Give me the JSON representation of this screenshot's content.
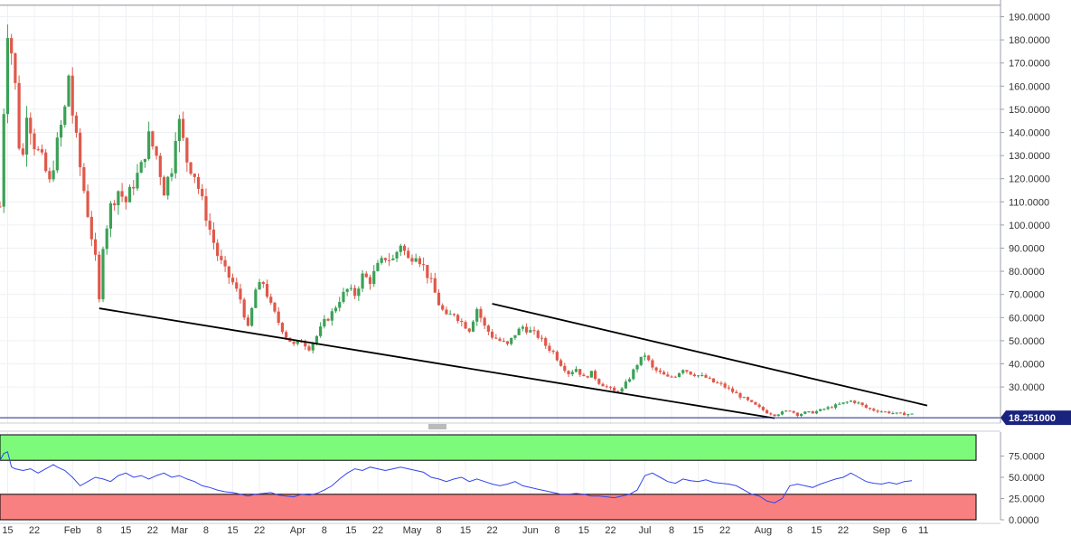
{
  "chart_data": [
    {
      "type": "candlestick",
      "title": "",
      "xlabel": "",
      "ylabel": "",
      "ylim": [
        14,
        197
      ],
      "y_ticks": [
        "190.0000",
        "180.0000",
        "170.0000",
        "160.0000",
        "150.0000",
        "140.0000",
        "130.0000",
        "120.0000",
        "110.0000",
        "100.0000",
        "90.0000",
        "80.0000",
        "70.0000",
        "60.0000",
        "50.0000",
        "40.0000",
        "30.0000"
      ],
      "y_tick_values": [
        190,
        180,
        170,
        160,
        150,
        140,
        130,
        120,
        110,
        100,
        90,
        80,
        70,
        60,
        50,
        40,
        30
      ],
      "x_tick_labels": [
        "15",
        "22",
        "Feb",
        "8",
        "15",
        "22",
        "Mar",
        "8",
        "15",
        "22",
        "Apr",
        "8",
        "15",
        "22",
        "May",
        "8",
        "15",
        "22",
        "Jun",
        "8",
        "15",
        "22",
        "Jul",
        "8",
        "15",
        "22",
        "Aug",
        "8",
        "15",
        "22",
        "Sep",
        "6",
        "11"
      ],
      "x_tick_days": [
        15,
        22,
        32,
        39,
        46,
        53,
        60,
        67,
        74,
        81,
        91,
        98,
        105,
        112,
        121,
        128,
        135,
        142,
        152,
        159,
        166,
        173,
        182,
        189,
        196,
        203,
        213,
        220,
        227,
        234,
        244,
        250,
        255
      ],
      "x_range_days": [
        13,
        270
      ],
      "grid": true,
      "current_price": {
        "label": "18.251000",
        "value": 18.251,
        "color": "#1a237e"
      },
      "colors": {
        "up": "#3aa155",
        "down": "#e0584a"
      },
      "close_anchors": [
        [
          13,
          108
        ],
        [
          14,
          150
        ],
        [
          15,
          185
        ],
        [
          16,
          175
        ],
        [
          17,
          160
        ],
        [
          18,
          135
        ],
        [
          19,
          130
        ],
        [
          20,
          150
        ],
        [
          22,
          135
        ],
        [
          24,
          128
        ],
        [
          26,
          118
        ],
        [
          28,
          135
        ],
        [
          30,
          150
        ],
        [
          31,
          165
        ],
        [
          32,
          148
        ],
        [
          34,
          125
        ],
        [
          36,
          105
        ],
        [
          38,
          85
        ],
        [
          39,
          67
        ],
        [
          40,
          92
        ],
        [
          42,
          108
        ],
        [
          44,
          115
        ],
        [
          46,
          110
        ],
        [
          48,
          118
        ],
        [
          50,
          125
        ],
        [
          52,
          138
        ],
        [
          54,
          130
        ],
        [
          56,
          115
        ],
        [
          58,
          125
        ],
        [
          59,
          140
        ],
        [
          60,
          144
        ],
        [
          62,
          128
        ],
        [
          64,
          122
        ],
        [
          66,
          110
        ],
        [
          68,
          98
        ],
        [
          70,
          87
        ],
        [
          72,
          80
        ],
        [
          74,
          75
        ],
        [
          76,
          68
        ],
        [
          78,
          55
        ],
        [
          80,
          72
        ],
        [
          82,
          75
        ],
        [
          84,
          65
        ],
        [
          86,
          58
        ],
        [
          88,
          52
        ],
        [
          90,
          48
        ],
        [
          92,
          50
        ],
        [
          94,
          47
        ],
        [
          96,
          52
        ],
        [
          98,
          58
        ],
        [
          100,
          62
        ],
        [
          102,
          68
        ],
        [
          104,
          72
        ],
        [
          106,
          70
        ],
        [
          108,
          78
        ],
        [
          110,
          76
        ],
        [
          112,
          82
        ],
        [
          114,
          86
        ],
        [
          116,
          85
        ],
        [
          118,
          92
        ],
        [
          120,
          85
        ],
        [
          122,
          88
        ],
        [
          124,
          82
        ],
        [
          126,
          75
        ],
        [
          128,
          66
        ],
        [
          130,
          60
        ],
        [
          132,
          62
        ],
        [
          134,
          58
        ],
        [
          136,
          55
        ],
        [
          138,
          64
        ],
        [
          140,
          56
        ],
        [
          142,
          52
        ],
        [
          144,
          50
        ],
        [
          146,
          48
        ],
        [
          148,
          53
        ],
        [
          150,
          56
        ],
        [
          152,
          54
        ],
        [
          154,
          52
        ],
        [
          156,
          48
        ],
        [
          158,
          45
        ],
        [
          160,
          40
        ],
        [
          162,
          36
        ],
        [
          164,
          38
        ],
        [
          166,
          34
        ],
        [
          168,
          36
        ],
        [
          170,
          32
        ],
        [
          172,
          30
        ],
        [
          174,
          28
        ],
        [
          176,
          29
        ],
        [
          178,
          34
        ],
        [
          180,
          40
        ],
        [
          182,
          44
        ],
        [
          184,
          38
        ],
        [
          186,
          36
        ],
        [
          188,
          34
        ],
        [
          190,
          35
        ],
        [
          192,
          38
        ],
        [
          194,
          36
        ],
        [
          196,
          35
        ],
        [
          198,
          34
        ],
        [
          200,
          32
        ],
        [
          202,
          31
        ],
        [
          204,
          29
        ],
        [
          206,
          27
        ],
        [
          208,
          25
        ],
        [
          210,
          23
        ],
        [
          212,
          21
        ],
        [
          214,
          19
        ],
        [
          216,
          18
        ],
        [
          218,
          19
        ],
        [
          220,
          20
        ],
        [
          222,
          18
        ],
        [
          224,
          19
        ],
        [
          226,
          19
        ],
        [
          228,
          20
        ],
        [
          230,
          21
        ],
        [
          232,
          22
        ],
        [
          234,
          23
        ],
        [
          236,
          24
        ],
        [
          238,
          23
        ],
        [
          240,
          21
        ],
        [
          242,
          20
        ],
        [
          244,
          19.5
        ],
        [
          246,
          19
        ],
        [
          248,
          18.5
        ],
        [
          250,
          18.3
        ],
        [
          252,
          18.251
        ]
      ],
      "annotations": [
        {
          "type": "trendline",
          "from": [
            39,
            64
          ],
          "to": [
            216,
            16.5
          ]
        },
        {
          "type": "trendline",
          "from": [
            142,
            66
          ],
          "to": [
            256,
            22
          ]
        },
        {
          "type": "reference_line",
          "value": 195
        }
      ]
    },
    {
      "type": "line",
      "title": "",
      "ylim": [
        0,
        100
      ],
      "y_ticks": [
        "75.0000",
        "50.0000",
        "25.0000",
        "0.0000"
      ],
      "y_tick_values": [
        75,
        50,
        25,
        0
      ],
      "overbought_zone": [
        70,
        100
      ],
      "oversold_zone": [
        0,
        30
      ],
      "zone_colors": {
        "overbought": "#7dfa7a",
        "oversold": "#f98080"
      },
      "series": [
        {
          "color": "#3344ee",
          "points": [
            [
              13,
              70
            ],
            [
              14,
              78
            ],
            [
              15,
              80
            ],
            [
              16,
              62
            ],
            [
              17,
              60
            ],
            [
              19,
              58
            ],
            [
              21,
              60
            ],
            [
              23,
              55
            ],
            [
              25,
              60
            ],
            [
              27,
              65
            ],
            [
              28,
              62
            ],
            [
              30,
              58
            ],
            [
              32,
              50
            ],
            [
              34,
              40
            ],
            [
              36,
              45
            ],
            [
              38,
              50
            ],
            [
              40,
              48
            ],
            [
              42,
              45
            ],
            [
              44,
              52
            ],
            [
              46,
              55
            ],
            [
              48,
              50
            ],
            [
              50,
              52
            ],
            [
              52,
              48
            ],
            [
              54,
              52
            ],
            [
              56,
              55
            ],
            [
              58,
              50
            ],
            [
              60,
              52
            ],
            [
              62,
              48
            ],
            [
              64,
              45
            ],
            [
              66,
              40
            ],
            [
              68,
              38
            ],
            [
              70,
              35
            ],
            [
              72,
              33
            ],
            [
              74,
              32
            ],
            [
              76,
              30
            ],
            [
              78,
              28
            ],
            [
              80,
              30
            ],
            [
              82,
              31
            ],
            [
              84,
              32
            ],
            [
              86,
              29
            ],
            [
              88,
              28
            ],
            [
              90,
              27
            ],
            [
              92,
              30
            ],
            [
              94,
              29
            ],
            [
              96,
              31
            ],
            [
              98,
              35
            ],
            [
              100,
              40
            ],
            [
              102,
              48
            ],
            [
              104,
              55
            ],
            [
              106,
              60
            ],
            [
              108,
              58
            ],
            [
              110,
              62
            ],
            [
              112,
              60
            ],
            [
              114,
              58
            ],
            [
              116,
              60
            ],
            [
              118,
              62
            ],
            [
              120,
              60
            ],
            [
              122,
              58
            ],
            [
              124,
              56
            ],
            [
              126,
              50
            ],
            [
              128,
              48
            ],
            [
              130,
              45
            ],
            [
              132,
              48
            ],
            [
              134,
              50
            ],
            [
              136,
              45
            ],
            [
              138,
              48
            ],
            [
              140,
              45
            ],
            [
              142,
              42
            ],
            [
              144,
              40
            ],
            [
              146,
              42
            ],
            [
              148,
              45
            ],
            [
              150,
              40
            ],
            [
              152,
              38
            ],
            [
              154,
              36
            ],
            [
              156,
              34
            ],
            [
              158,
              32
            ],
            [
              160,
              30
            ],
            [
              162,
              30
            ],
            [
              164,
              31
            ],
            [
              166,
              30
            ],
            [
              168,
              28
            ],
            [
              170,
              28
            ],
            [
              172,
              27
            ],
            [
              174,
              26
            ],
            [
              176,
              28
            ],
            [
              178,
              30
            ],
            [
              180,
              35
            ],
            [
              182,
              52
            ],
            [
              184,
              55
            ],
            [
              186,
              50
            ],
            [
              188,
              45
            ],
            [
              190,
              43
            ],
            [
              192,
              48
            ],
            [
              194,
              46
            ],
            [
              196,
              45
            ],
            [
              198,
              47
            ],
            [
              200,
              44
            ],
            [
              202,
              43
            ],
            [
              204,
              42
            ],
            [
              206,
              40
            ],
            [
              208,
              35
            ],
            [
              210,
              30
            ],
            [
              212,
              28
            ],
            [
              214,
              22
            ],
            [
              216,
              20
            ],
            [
              218,
              25
            ],
            [
              220,
              40
            ],
            [
              222,
              42
            ],
            [
              224,
              40
            ],
            [
              226,
              38
            ],
            [
              228,
              42
            ],
            [
              230,
              45
            ],
            [
              232,
              48
            ],
            [
              234,
              50
            ],
            [
              236,
              55
            ],
            [
              238,
              50
            ],
            [
              240,
              45
            ],
            [
              242,
              43
            ],
            [
              244,
              42
            ],
            [
              246,
              44
            ],
            [
              248,
              42
            ],
            [
              250,
              45
            ],
            [
              252,
              46
            ]
          ]
        }
      ]
    }
  ]
}
